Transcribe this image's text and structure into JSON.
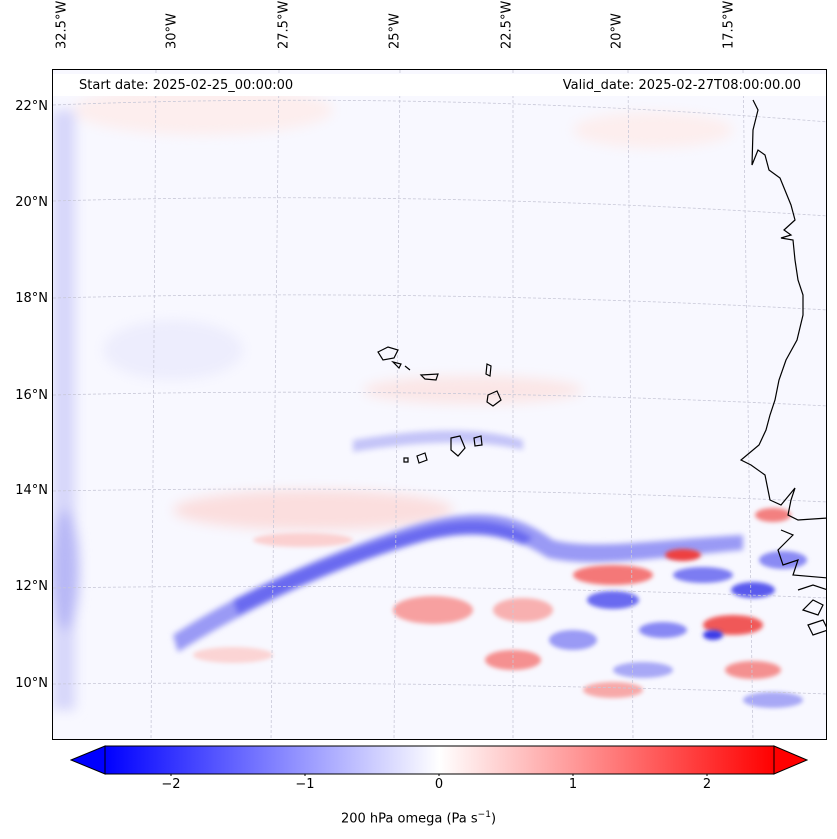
{
  "map": {
    "start_date_label": "Start date: 2025-02-25_00:00:00",
    "valid_date_label": "Valid_date: 2025-02-27T08:00:00.00",
    "longitude_ticks": [
      "32.5°W",
      "30°W",
      "27.5°W",
      "25°W",
      "22.5°W",
      "20°W",
      "17.5°W"
    ],
    "latitude_ticks": [
      "22°N",
      "20°N",
      "18°N",
      "16°N",
      "14°N",
      "12°N",
      "10°N"
    ],
    "field": "200 hPa omega",
    "colormap": "bwr",
    "colors": {
      "negative": "#0000ff",
      "zero": "#ffffff",
      "positive": "#ff0000",
      "coastline": "#000000",
      "gridline": "#c8c8d8"
    }
  },
  "colorbar": {
    "ticks": [
      "−2",
      "−1",
      "0",
      "1",
      "2"
    ],
    "tick_values": [
      -2,
      -1,
      0,
      1,
      2
    ],
    "range": [
      -2.5,
      2.5
    ],
    "extend": "both",
    "label_text": "200 hPa omega (Pa s",
    "label_exponent": "−1",
    "label_close": ")"
  }
}
